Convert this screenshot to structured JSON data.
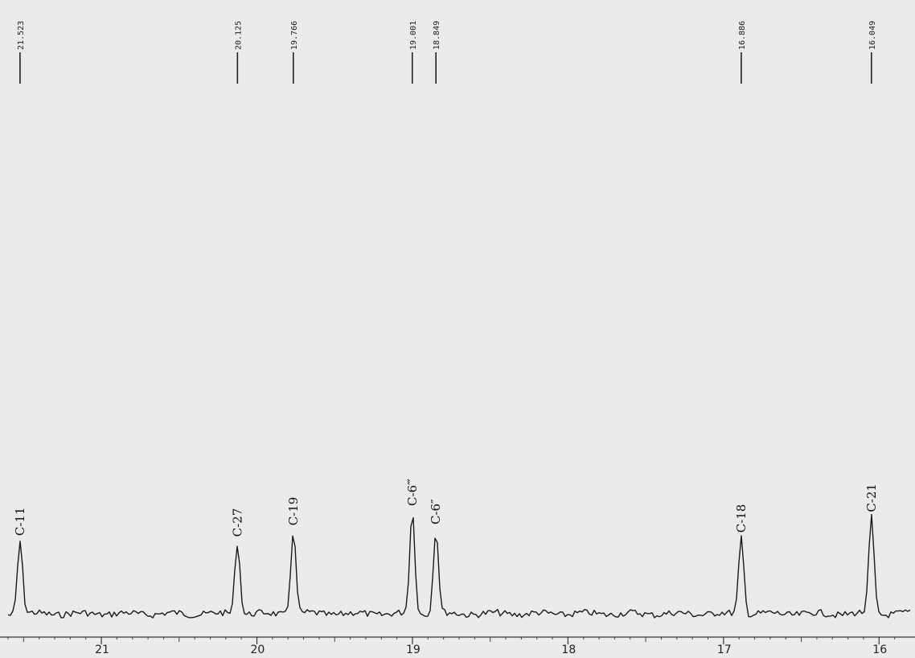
{
  "chart_data": {
    "type": "line",
    "title": "",
    "xlabel": "",
    "ylabel": "",
    "x_reversed": true,
    "xlim": [
      21.6,
      15.8
    ],
    "x_ticks": [
      21,
      20,
      19,
      18,
      17,
      16
    ],
    "x_tick_labels": [
      "21",
      "20",
      "19",
      "18",
      "17",
      "16"
    ],
    "peak_labels": [
      "21.523",
      "20.125",
      "19.766",
      "19.001",
      "18.849",
      "16.886",
      "16.049"
    ],
    "peaks": [
      {
        "shift": 21.523,
        "label": "21.523",
        "assignment": "C-11",
        "relative_intensity": 0.71
      },
      {
        "shift": 20.125,
        "label": "20.125",
        "assignment": "C-27",
        "relative_intensity": 0.7
      },
      {
        "shift": 19.766,
        "label": "19.766",
        "assignment": "C-19",
        "relative_intensity": 0.81
      },
      {
        "shift": 19.001,
        "label": "19.001",
        "assignment": "C-6‴",
        "relative_intensity": 1.0
      },
      {
        "shift": 18.849,
        "label": "18.849",
        "assignment": "C-6″",
        "relative_intensity": 0.82
      },
      {
        "shift": 16.886,
        "label": "16.886",
        "assignment": "C-18",
        "relative_intensity": 0.74
      },
      {
        "shift": 16.049,
        "label": "16.049",
        "assignment": "C-21",
        "relative_intensity": 0.94
      }
    ],
    "grid": false,
    "legend": "none",
    "colors": {
      "line": "#1a1a1a",
      "background": "#ebebeb"
    }
  }
}
